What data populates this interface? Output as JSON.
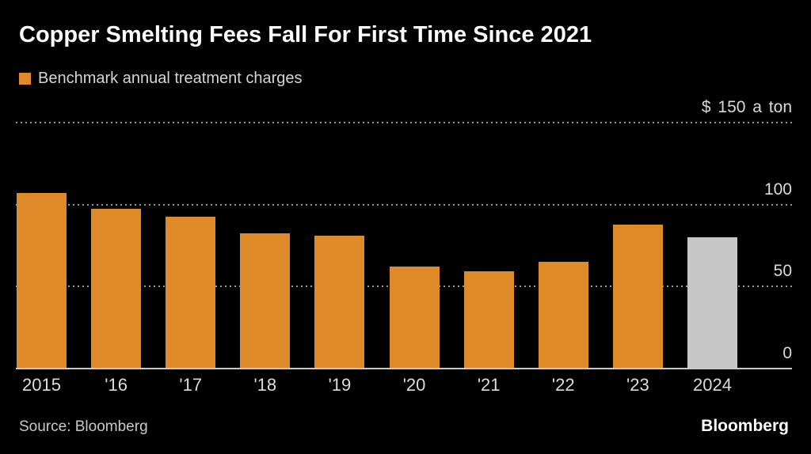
{
  "header": {
    "title": "Copper Smelting Fees Fall For First Time Since 2021",
    "legend_label": "Benchmark annual treatment charges"
  },
  "chart_data": {
    "type": "bar",
    "title": "Copper Smelting Fees Fall For First Time Since 2021",
    "legend": [
      "Benchmark annual treatment charges"
    ],
    "legend_position": "top-left",
    "categories": [
      "2015",
      "'16",
      "'17",
      "'18",
      "'19",
      "'20",
      "'21",
      "'22",
      "'23",
      "2024"
    ],
    "values": [
      107,
      97.35,
      92.5,
      82.25,
      80.8,
      62,
      59.5,
      65,
      88,
      80
    ],
    "bar_color": "#DE8A28",
    "highlight": {
      "index": 9,
      "category": "2024",
      "color": "#C6C6C6"
    },
    "ylim": [
      0,
      150
    ],
    "yticks": [
      {
        "value": 0,
        "label": "0"
      },
      {
        "value": 50,
        "label": "50"
      },
      {
        "value": 100,
        "label": "100"
      },
      {
        "value": 150,
        "label": "$ 150 a ton"
      }
    ],
    "grid": "horizontal-dotted",
    "background": "#000000"
  },
  "footer": {
    "source": "Source: Bloomberg",
    "logo": "Bloomberg"
  }
}
